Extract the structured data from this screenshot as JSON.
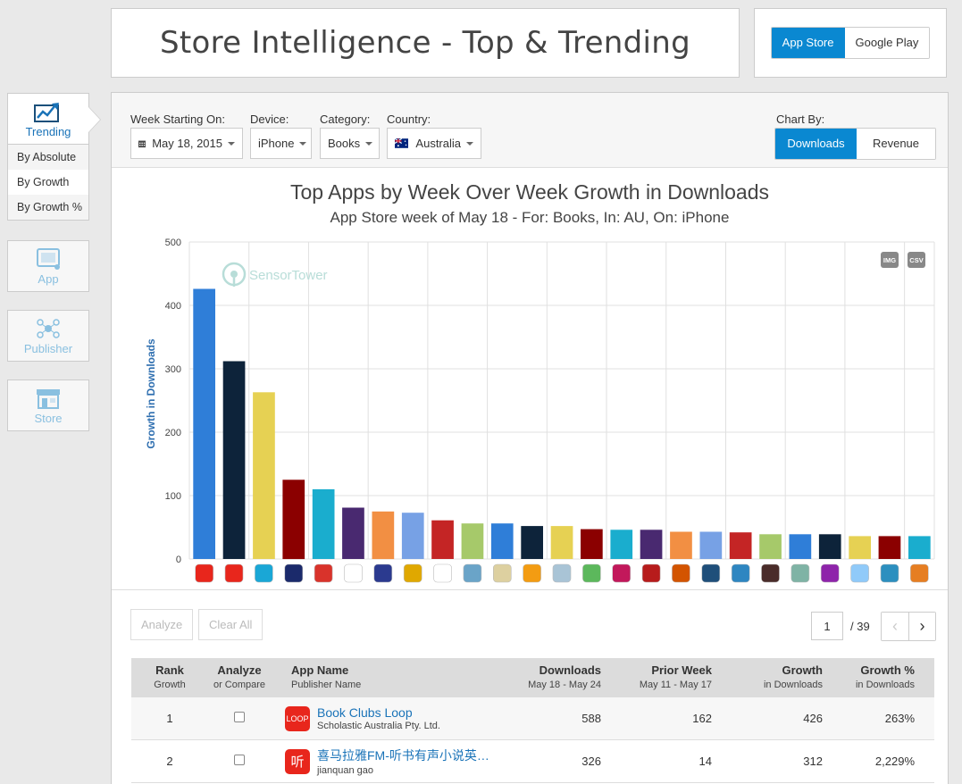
{
  "header": {
    "title": "Store Intelligence - Top & Trending"
  },
  "store_toggle": {
    "options": [
      "App Store",
      "Google Play"
    ],
    "active": 0
  },
  "sidenav": {
    "trending_label": "Trending",
    "sub_items": [
      "By Absolute",
      "By Growth",
      "By Growth %"
    ],
    "active_sub": 1,
    "app_label": "App",
    "publisher_label": "Publisher",
    "store_label": "Store"
  },
  "filters": {
    "week_label": "Week Starting On:",
    "week_value": "May 18, 2015",
    "device_label": "Device:",
    "device_value": "iPhone",
    "category_label": "Category:",
    "category_value": "Books",
    "country_label": "Country:",
    "country_value": "Australia",
    "chartby_label": "Chart By:",
    "chartby_options": [
      "Downloads",
      "Revenue"
    ],
    "chartby_active": 0
  },
  "chart": {
    "title": "Top Apps by Week Over Week Growth in Downloads",
    "subtitle": "App Store week of May 18 - For: Books, In: AU, On: iPhone",
    "watermark": "SensorTower",
    "img_btn": "IMG",
    "csv_btn": "CSV"
  },
  "chart_data": {
    "type": "bar",
    "title": "Top Apps by Week Over Week Growth in Downloads",
    "subtitle": "App Store week of May 18 - For: Books, In: AU, On: iPhone",
    "ylabel": "Growth in Downloads",
    "xlabel": "",
    "ylim": [
      0,
      500
    ],
    "yticks": [
      0,
      100,
      200,
      300,
      400,
      500
    ],
    "grid": true,
    "values": [
      426,
      312,
      263,
      125,
      110,
      81,
      75,
      73,
      61,
      56,
      56,
      52,
      52,
      47,
      46,
      46,
      43,
      43,
      42,
      39,
      39,
      39,
      36,
      36,
      36
    ],
    "colors": [
      "#2f7ed8",
      "#0d233a",
      "#e6d153",
      "#8b0000",
      "#1aadce",
      "#492970",
      "#f28f43",
      "#77a1e5",
      "#c42525",
      "#a6c96a",
      "#2f7ed8",
      "#0d233a",
      "#e6d153",
      "#8b0000",
      "#1aadce",
      "#492970",
      "#f28f43",
      "#77a1e5",
      "#c42525",
      "#a6c96a",
      "#2f7ed8",
      "#0d233a",
      "#e6d153",
      "#8b0000",
      "#1aadce"
    ],
    "icon_colors": [
      "#e8261c",
      "#e8261c",
      "#1aa7d6",
      "#1b2a6b",
      "#d9332b",
      "#ffffff",
      "#2b3a8f",
      "#e0a800",
      "#ffffff",
      "#6aa4c8",
      "#ddd0a0",
      "#f39c12",
      "#a9c4d6",
      "#5cb85c",
      "#c2185b",
      "#b71c1c",
      "#d35400",
      "#1f4f7a",
      "#2e86c1",
      "#4a2c2a",
      "#7fb3a5",
      "#8e24aa",
      "#90caf9",
      "#2c8fbf",
      "#e67e22"
    ]
  },
  "table_controls": {
    "analyze": "Analyze",
    "clear_all": "Clear All",
    "page": "1",
    "page_total": "/ 39",
    "prev": "‹",
    "next": "›"
  },
  "table": {
    "headers": [
      {
        "main": "Rank",
        "sub": "Growth"
      },
      {
        "main": "Analyze",
        "sub": "or Compare"
      },
      {
        "main": "App Name",
        "sub": "Publisher Name"
      },
      {
        "main": "Downloads",
        "sub": "May 18 - May 24"
      },
      {
        "main": "Prior Week",
        "sub": "May 11 - May 17"
      },
      {
        "main": "Growth",
        "sub": "in Downloads"
      },
      {
        "main": "Growth %",
        "sub": "in Downloads"
      }
    ],
    "rows": [
      {
        "rank": "1",
        "icon_text": "LOOP",
        "name": "Book Clubs Loop",
        "publisher": "Scholastic Australia Pty. Ltd.",
        "downloads": "588",
        "prior": "162",
        "growth": "426",
        "growth_pct": "263%"
      },
      {
        "rank": "2",
        "icon_text": "听",
        "name": "喜马拉雅FM-听书有声小说英…",
        "publisher": "jianquan gao",
        "downloads": "326",
        "prior": "14",
        "growth": "312",
        "growth_pct": "2,229%"
      }
    ]
  }
}
